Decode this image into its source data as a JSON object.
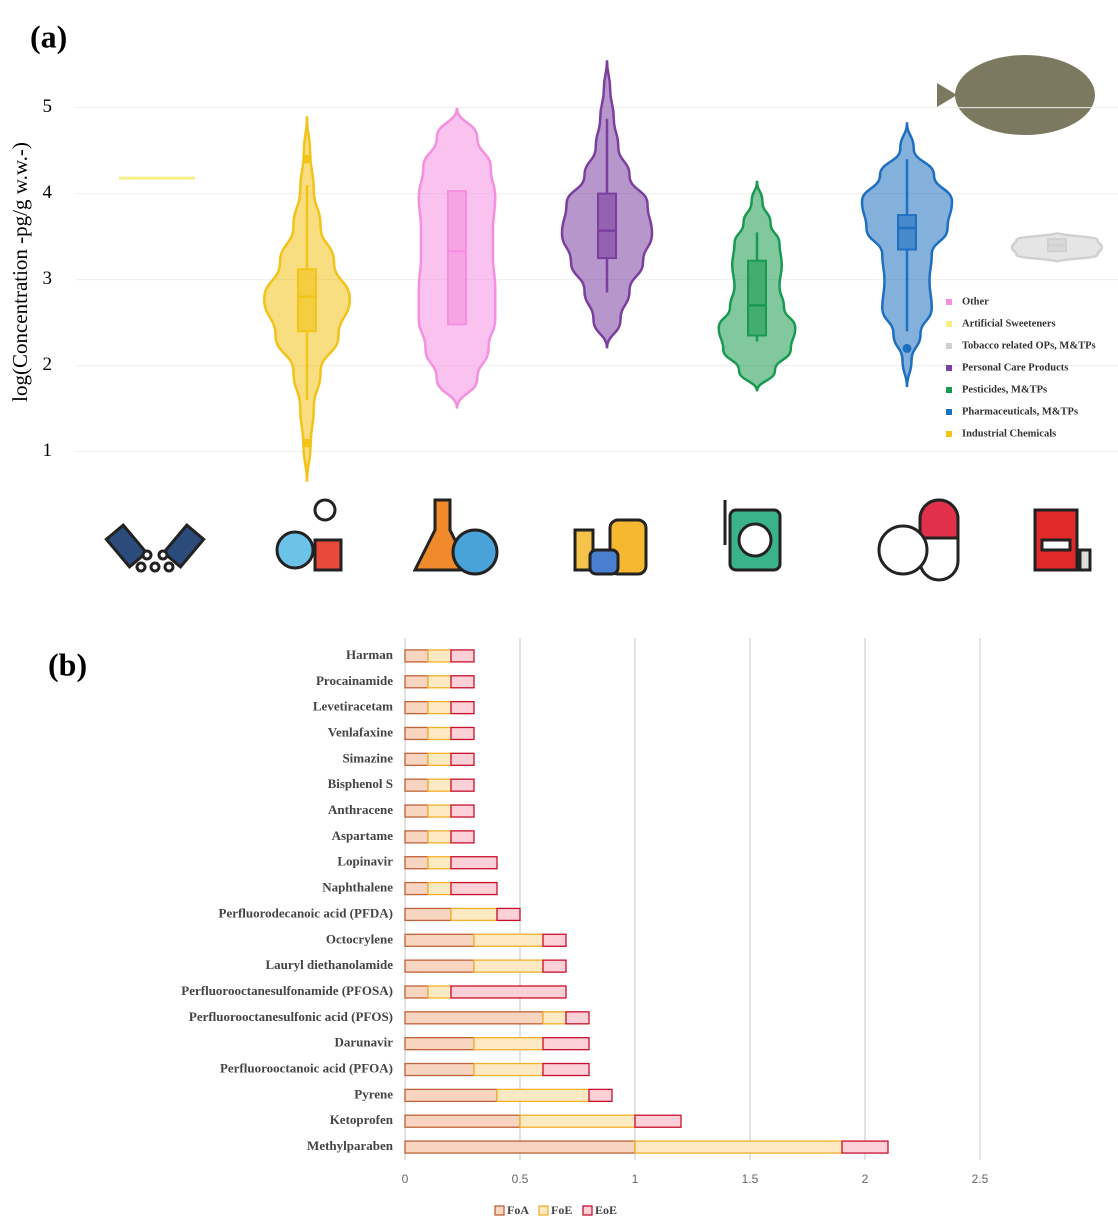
{
  "chart_data": [
    {
      "type": "violin",
      "panel_label": "(a)",
      "y_label": "log(Concentration -pg/g w.w.-)",
      "ylim": [
        0.6,
        5.6
      ],
      "yticks": [
        1,
        2,
        3,
        4,
        5
      ],
      "grid": true,
      "legend_position": "right",
      "legend_order": [
        2,
        0,
        6,
        3,
        4,
        5,
        1
      ],
      "series": [
        {
          "name": "Artificial Sweeteners",
          "color": "#f7f08a",
          "min": 4.18,
          "max": 4.18,
          "density": [
            1
          ]
        },
        {
          "name": "Industrial Chemicals",
          "color": "#f2c318",
          "min": 0.65,
          "max": 4.9,
          "density": [
            0,
            0.08,
            0.15,
            0.3,
            0.7,
            0.95,
            0.6,
            0.3,
            0.15,
            0.07,
            0
          ],
          "q1": 2.4,
          "median": 2.8,
          "q3": 3.12,
          "whisker_low": 1.6,
          "whisker_high": 4.1,
          "outliers": [
            4.4,
            1.1
          ]
        },
        {
          "name": "Other",
          "color": "#f58fe0",
          "min": 1.5,
          "max": 5.0,
          "density": [
            0,
            0.45,
            0.7,
            0.85,
            0.85,
            0.8,
            0.8,
            0.85,
            0.75,
            0.45,
            0
          ],
          "q1": 2.48,
          "median": 3.33,
          "q3": 4.03
        },
        {
          "name": "Personal Care Products",
          "color": "#7b3fa0",
          "min": 2.2,
          "max": 5.55,
          "density": [
            0,
            0.3,
            0.5,
            0.8,
            1.0,
            0.9,
            0.5,
            0.25,
            0.15,
            0.07,
            0
          ],
          "q1": 3.25,
          "median": 3.57,
          "q3": 4.0,
          "whisker_low": 2.85,
          "whisker_high": 4.87
        },
        {
          "name": "Pesticides, M&TPs",
          "color": "#1a9a50",
          "min": 1.7,
          "max": 4.15,
          "density": [
            0,
            0.4,
            0.75,
            0.85,
            0.6,
            0.5,
            0.55,
            0.5,
            0.3,
            0.12,
            0
          ],
          "q1": 2.35,
          "median": 2.7,
          "q3": 3.22,
          "whisker_low": 2.28,
          "whisker_high": 3.55
        },
        {
          "name": "Pharmaceuticals, M&TPs",
          "color": "#1f6fc0",
          "min": 1.75,
          "max": 4.83,
          "density": [
            0,
            0.1,
            0.3,
            0.55,
            0.5,
            0.55,
            0.9,
            1.0,
            0.6,
            0.15,
            0
          ],
          "q1": 3.35,
          "median": 3.6,
          "q3": 3.75,
          "whisker_low": 2.4,
          "whisker_high": 4.4,
          "outliers": [
            2.2
          ]
        },
        {
          "name": "Tobacco related OPs, M&TPs",
          "color": "#d0d0d0",
          "min": 3.2,
          "max": 3.55,
          "density": [
            0,
            0.9,
            1,
            0.9,
            0
          ],
          "q1": 3.33,
          "median": 3.4,
          "q3": 3.47
        }
      ]
    },
    {
      "type": "stacked_barh",
      "panel_label": "(b)",
      "categories": [
        "Harman",
        "Procainamide",
        "Levetiracetam",
        "Venlafaxine",
        "Simazine",
        "Bisphenol S",
        "Anthracene",
        "Aspartame",
        "Lopinavir",
        "Naphthalene",
        "Perfluorodecanoic acid (PFDA)",
        "Octocrylene",
        "Lauryl diethanolamide",
        "Perfluorooctanesulfonamide (PFOSA)",
        "Perfluorooctanesulfonic acid (PFOS)",
        "Darunavir",
        "Perfluorooctanoic acid (PFOA)",
        "Pyrene",
        "Ketoprofen",
        "Methylparaben"
      ],
      "xlim": [
        0,
        2.5
      ],
      "xticks": [
        0,
        0.5,
        1,
        1.5,
        2,
        2.5
      ],
      "grid": true,
      "legend_position": "bottom",
      "series": [
        {
          "name": "FoA",
          "color": "#f8d5c0",
          "edge": "#c0623a",
          "values": [
            0.1,
            0.1,
            0.1,
            0.1,
            0.1,
            0.1,
            0.1,
            0.1,
            0.1,
            0.1,
            0.2,
            0.3,
            0.3,
            0.1,
            0.6,
            0.3,
            0.3,
            0.4,
            0.5,
            1.0
          ]
        },
        {
          "name": "FoE",
          "color": "#fde9c4",
          "edge": "#f2b12a",
          "values": [
            0.1,
            0.1,
            0.1,
            0.1,
            0.1,
            0.1,
            0.1,
            0.1,
            0.1,
            0.1,
            0.2,
            0.3,
            0.3,
            0.1,
            0.1,
            0.3,
            0.3,
            0.4,
            0.5,
            0.9
          ]
        },
        {
          "name": "EoE",
          "color": "#fbd0d6",
          "edge": "#c8102e",
          "values": [
            0.1,
            0.1,
            0.1,
            0.1,
            0.1,
            0.1,
            0.1,
            0.1,
            0.2,
            0.2,
            0.1,
            0.1,
            0.1,
            0.5,
            0.1,
            0.2,
            0.2,
            0.1,
            0.2,
            0.2
          ]
        }
      ]
    }
  ]
}
